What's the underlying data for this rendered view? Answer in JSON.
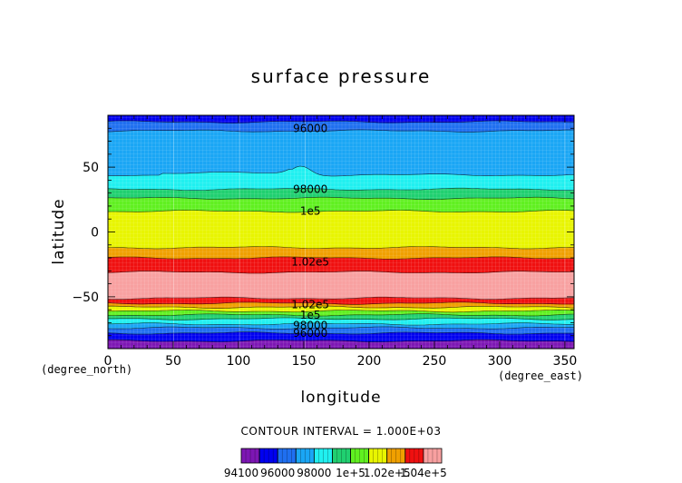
{
  "chart_data": {
    "type": "heatmap",
    "title": "surface pressure",
    "xlabel": "longitude",
    "ylabel": "latitude",
    "x_unit": "(degree_east)",
    "y_unit": "(degree_north)",
    "xlim": [
      0,
      357
    ],
    "ylim": [
      -90,
      90
    ],
    "x_ticks": [
      0,
      50,
      100,
      150,
      200,
      250,
      300,
      350
    ],
    "y_ticks": [
      -50,
      0,
      50
    ],
    "grid": true,
    "contour_interval_text": "CONTOUR INTERVAL = 1.000E+03",
    "levels": [
      94100,
      95000,
      96000,
      97000,
      98000,
      99000,
      100000,
      101000,
      102000,
      103000,
      104000
    ],
    "level_colors": [
      "#7d16b4",
      "#0000f0",
      "#1f6ff0",
      "#1aa6f5",
      "#20f0f0",
      "#20d070",
      "#60f020",
      "#e8f500",
      "#f0a000",
      "#f01010",
      "#f8a0a0"
    ],
    "colorbar_labels": [
      {
        "value": 94100,
        "text": "94100"
      },
      {
        "value": 96000,
        "text": "96000"
      },
      {
        "value": 98000,
        "text": "98000"
      },
      {
        "value": 100000,
        "text": "1e+5"
      },
      {
        "value": 102000,
        "text": "1.02e+5"
      },
      {
        "value": 104000,
        "text": "1.04e+5"
      }
    ],
    "band_boundaries_latitude": [
      {
        "lat": -90,
        "band": 0
      },
      {
        "lat": -84,
        "band": 1
      },
      {
        "lat": -78,
        "band": 2
      },
      {
        "lat": -74,
        "band": 3
      },
      {
        "lat": -71,
        "band": 4
      },
      {
        "lat": -67,
        "band": 5
      },
      {
        "lat": -64,
        "band": 6
      },
      {
        "lat": -61,
        "band": 7
      },
      {
        "lat": -58,
        "band": 8
      },
      {
        "lat": -55,
        "band": 9
      },
      {
        "lat": -51,
        "band": 10
      },
      {
        "lat": -31,
        "band": 9
      },
      {
        "lat": -20,
        "band": 8
      },
      {
        "lat": -12,
        "band": 7
      },
      {
        "lat": 16,
        "band": 6
      },
      {
        "lat": 26,
        "band": 5
      },
      {
        "lat": 33,
        "band": 4
      },
      {
        "lat": 44,
        "band": 3
      },
      {
        "lat": 78,
        "band": 2
      },
      {
        "lat": 85,
        "band": 1
      }
    ],
    "northern_bump": {
      "center_lon": 148,
      "width_lon": 10,
      "height_lat": 7
    },
    "contour_labels": [
      {
        "lon": 155,
        "lat": 80,
        "text": "96000"
      },
      {
        "lon": 155,
        "lat": 33,
        "text": "98000"
      },
      {
        "lon": 155,
        "lat": 16,
        "text": "1e5"
      },
      {
        "lon": 155,
        "lat": -23,
        "text": "1.02e5"
      },
      {
        "lon": 155,
        "lat": -56,
        "text": "1.02e5"
      },
      {
        "lon": 155,
        "lat": -64,
        "text": "1e5"
      },
      {
        "lon": 155,
        "lat": -72,
        "text": "98000"
      },
      {
        "lon": 155,
        "lat": -78,
        "text": "96000"
      }
    ]
  }
}
